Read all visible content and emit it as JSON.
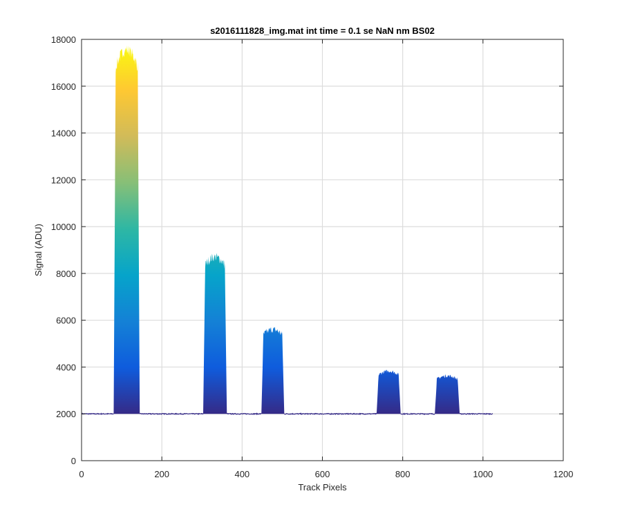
{
  "chart_data": {
    "type": "line",
    "title": "s2016111828_img.mat int time = 0.1 se  NaN nm BS02",
    "xlabel": "Track Pixels",
    "ylabel": "Signal (ADU)",
    "xlim": [
      0,
      1200
    ],
    "ylim": [
      0,
      18000
    ],
    "x_ticks": [
      0,
      200,
      400,
      600,
      800,
      1000,
      1200
    ],
    "y_ticks": [
      0,
      2000,
      4000,
      6000,
      8000,
      10000,
      12000,
      14000,
      16000,
      18000
    ],
    "x_tick_labels": [
      "0",
      "200",
      "400",
      "600",
      "800",
      "1000",
      "1200"
    ],
    "y_tick_labels": [
      "0",
      "2000",
      "4000",
      "6000",
      "8000",
      "10000",
      "12000",
      "14000",
      "16000",
      "18000"
    ],
    "grid": true,
    "colormap": [
      "#352a87",
      "#0f5cdd",
      "#1481d6",
      "#06a4ca",
      "#2eb7a4",
      "#87bf77",
      "#d1bb59",
      "#fec832",
      "#f9fb0e"
    ],
    "x_range": [
      1,
      1024
    ],
    "baseline": 2000,
    "peaks": [
      {
        "x_start": 80,
        "x_end": 145,
        "top": 17300,
        "top_max": 17800
      },
      {
        "x_start": 303,
        "x_end": 362,
        "top": 8500,
        "top_max": 8900
      },
      {
        "x_start": 448,
        "x_end": 505,
        "top": 5450,
        "top_max": 5750
      },
      {
        "x_start": 735,
        "x_end": 795,
        "top": 3750,
        "top_max": 3900
      },
      {
        "x_start": 880,
        "x_end": 942,
        "top": 3550,
        "top_max": 3700
      }
    ]
  }
}
